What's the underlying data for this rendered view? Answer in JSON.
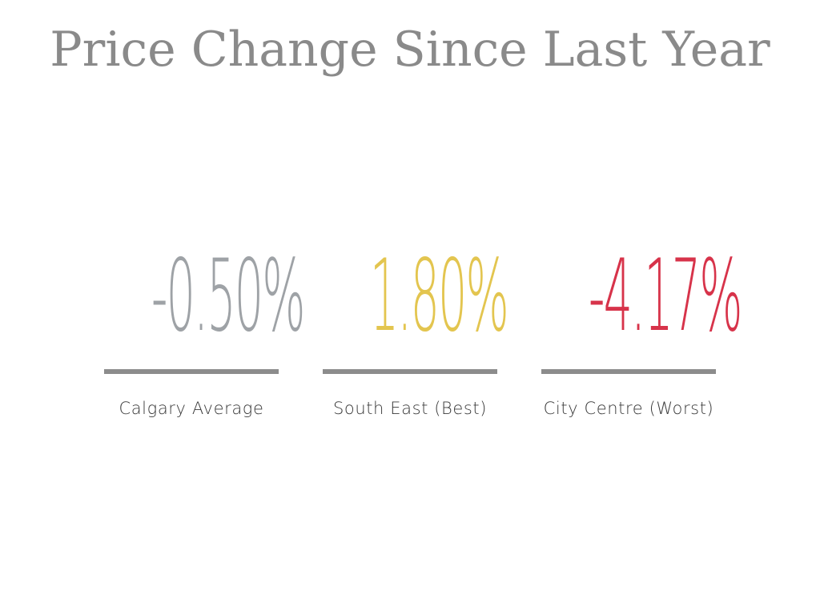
{
  "title": "Price Change Since Last Year",
  "colors": {
    "title": "#8a8a8a",
    "neutral": "#9ea2a6",
    "best": "#e3c54f",
    "worst": "#d7334a",
    "rule": "#8c8c8c",
    "label": "#3a3a3a"
  },
  "chart_data": {
    "type": "table",
    "title": "Price Change Since Last Year",
    "items": [
      {
        "label": "Calgary Average",
        "value": -0.5,
        "display": "-0.50%",
        "color": "#9ea2a6"
      },
      {
        "label": "South East (Best)",
        "value": 1.8,
        "display": "1.80%",
        "color": "#e3c54f"
      },
      {
        "label": "City Centre (Worst)",
        "value": -4.17,
        "display": "-4.17%",
        "color": "#d7334a"
      }
    ]
  }
}
